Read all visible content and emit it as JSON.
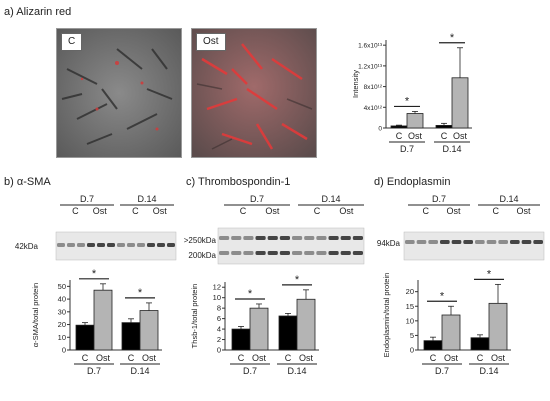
{
  "panels": {
    "a": {
      "title": "a) Alizarin red",
      "image_labels": [
        "C",
        "Ost"
      ]
    },
    "b": {
      "title": "b) α-SMA",
      "blot_groups": [
        "D.7",
        "D.14"
      ],
      "blot_lanes": [
        "C",
        "Ost"
      ],
      "blot_markers": [
        "42kDa"
      ]
    },
    "c": {
      "title": "c) Thrombospondin-1",
      "blot_groups": [
        "D.7",
        "D.14"
      ],
      "blot_lanes": [
        "C",
        "Ost"
      ],
      "blot_markers": [
        ">250kDa",
        "200kDa"
      ]
    },
    "d": {
      "title": "d) Endoplasmin",
      "blot_groups": [
        "D.7",
        "D.14"
      ],
      "blot_lanes": [
        "C",
        "Ost"
      ],
      "blot_markers": [
        "94kDa"
      ]
    }
  },
  "colors": {
    "control_bar": "#000000",
    "ost_bar": "#b4b4b4"
  },
  "chart_data": [
    {
      "id": "a",
      "type": "bar",
      "ylabel": "Intensity",
      "yticks": [
        0,
        4000000000000.0,
        8000000000000.0,
        12000000000000.0,
        16000000000000.0
      ],
      "yticklabels": [
        "0",
        "4x10¹²",
        "8x10¹²",
        "1.2x10¹³",
        "1.6x10¹³"
      ],
      "ylim": [
        0,
        17000000000000.0
      ],
      "groups": [
        "D.7",
        "D.14"
      ],
      "categories": [
        "C",
        "Ost"
      ],
      "series": [
        {
          "values": [
            400000000000.0,
            500000000000.0
          ],
          "errors": [
            150000000000.0,
            400000000000.0
          ]
        },
        {
          "values": [
            2800000000000.0,
            9700000000000.0
          ],
          "errors": [
            400000000000.0,
            5800000000000.0
          ]
        }
      ],
      "significance": [
        "*",
        "*"
      ]
    },
    {
      "id": "b",
      "type": "bar",
      "ylabel": "α-SMA/total protein",
      "yticks": [
        0,
        10,
        20,
        30,
        40,
        50
      ],
      "yticklabels": [
        "0",
        "10",
        "20",
        "30",
        "40",
        "50"
      ],
      "ylim": [
        0,
        55
      ],
      "groups": [
        "D.7",
        "D.14"
      ],
      "categories": [
        "C",
        "Ost"
      ],
      "series": [
        {
          "values": [
            19.5,
            21.5
          ],
          "errors": [
            2,
            3
          ]
        },
        {
          "values": [
            47,
            31
          ],
          "errors": [
            5,
            6
          ]
        }
      ],
      "significance": [
        "*",
        "*"
      ]
    },
    {
      "id": "c",
      "type": "bar",
      "ylabel": "Thsb-1/total protein",
      "yticks": [
        0,
        2,
        4,
        6,
        8,
        10,
        12
      ],
      "yticklabels": [
        "0",
        "2",
        "4",
        "6",
        "8",
        "10",
        "12"
      ],
      "ylim": [
        0,
        13
      ],
      "groups": [
        "D.7",
        "D.14"
      ],
      "categories": [
        "C",
        "Ost"
      ],
      "series": [
        {
          "values": [
            4,
            6.5
          ],
          "errors": [
            0.5,
            0.5
          ]
        },
        {
          "values": [
            8,
            9.7
          ],
          "errors": [
            0.8,
            1.8
          ]
        }
      ],
      "significance": [
        "*",
        "*"
      ]
    },
    {
      "id": "d",
      "type": "bar",
      "ylabel": "Endoplasmin/total protein",
      "yticks": [
        0,
        5,
        10,
        15,
        20
      ],
      "yticklabels": [
        "0",
        "5",
        "10",
        "15",
        "20"
      ],
      "ylim": [
        0,
        24
      ],
      "groups": [
        "D.7",
        "D.14"
      ],
      "categories": [
        "C",
        "Ost"
      ],
      "series": [
        {
          "values": [
            3.2,
            4.2
          ],
          "errors": [
            1.2,
            1
          ]
        },
        {
          "values": [
            12,
            16
          ],
          "errors": [
            3,
            6.5
          ]
        }
      ],
      "significance": [
        "*",
        "*"
      ]
    }
  ]
}
